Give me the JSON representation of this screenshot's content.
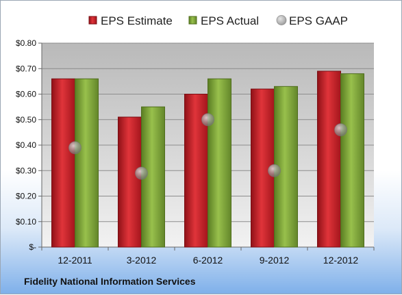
{
  "footer": {
    "company": "Fidelity National Information Services"
  },
  "chart_data": {
    "type": "bar",
    "title": "",
    "xlabel": "",
    "ylabel": "",
    "categories": [
      "12-2011",
      "3-2012",
      "6-2012",
      "9-2012",
      "12-2012"
    ],
    "ylim": [
      0,
      0.8
    ],
    "yticks": [
      0,
      0.1,
      0.2,
      0.3,
      0.4,
      0.5,
      0.6,
      0.7,
      0.8
    ],
    "ytick_labels": [
      "$-",
      "$0.10",
      "$0.20",
      "$0.30",
      "$0.40",
      "$0.50",
      "$0.60",
      "$0.70",
      "$0.80"
    ],
    "grid": true,
    "legend_position": "top",
    "series": [
      {
        "name": "EPS Estimate",
        "kind": "bar",
        "color": "#c81e25",
        "values": [
          0.66,
          0.51,
          0.6,
          0.62,
          0.69
        ]
      },
      {
        "name": "EPS Actual",
        "kind": "bar",
        "color": "#7fa33a",
        "values": [
          0.66,
          0.55,
          0.66,
          0.63,
          0.68
        ]
      },
      {
        "name": "EPS GAAP",
        "kind": "marker",
        "color": "#9a9a9a",
        "values": [
          0.39,
          0.29,
          0.5,
          0.3,
          0.46
        ]
      }
    ]
  }
}
